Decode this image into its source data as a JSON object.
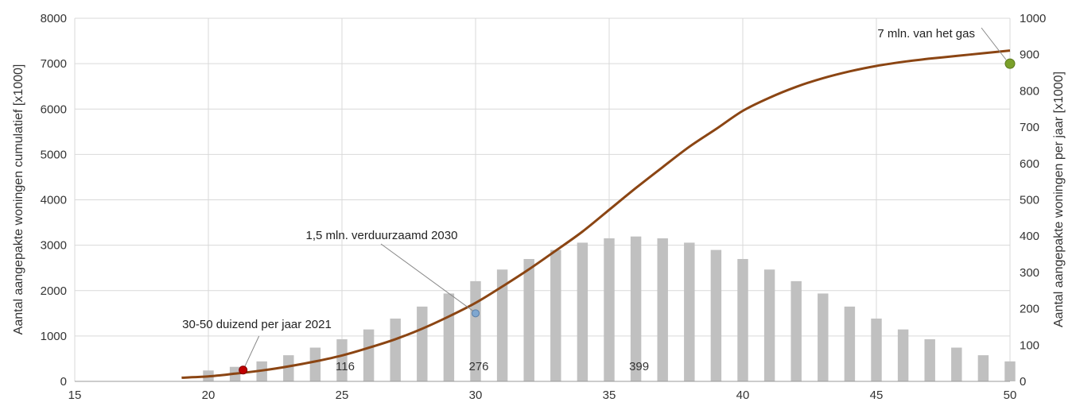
{
  "chart_data": {
    "type": "bar+line",
    "x": [
      20,
      21,
      22,
      23,
      24,
      25,
      26,
      27,
      28,
      29,
      30,
      31,
      32,
      33,
      34,
      35,
      36,
      37,
      38,
      39,
      40,
      41,
      42,
      43,
      44,
      45,
      46,
      47,
      48,
      49,
      50
    ],
    "xlim": [
      15,
      50
    ],
    "x_ticks": [
      15,
      20,
      25,
      30,
      35,
      40,
      45,
      50
    ],
    "ylabel_left": "Aantal aangepakte woningen cumulatief [x1000]",
    "ylabel_right": "Aantal aangepakte woningen per jaar [x1000]",
    "ylim_left": [
      0,
      8000
    ],
    "ylim_right": [
      0,
      1000
    ],
    "y_ticks_left": [
      0,
      1000,
      2000,
      3000,
      4000,
      5000,
      6000,
      7000,
      8000
    ],
    "y_ticks_right": [
      0,
      100,
      200,
      300,
      400,
      500,
      600,
      700,
      800,
      900,
      1000
    ],
    "grid": true,
    "colors": {
      "bars": "#c0c0c0",
      "curve": "#8b4513",
      "grid": "#d9d9d9",
      "start_marker": "#c00000",
      "mid_marker": "#7fa7d0",
      "end_marker": "#7aa02a"
    },
    "series": [
      {
        "axis": "right",
        "type": "bar",
        "values": [
          30,
          40,
          55,
          72,
          93,
          116,
          143,
          173,
          206,
          242,
          276,
          308,
          337,
          362,
          382,
          394,
          399,
          394,
          382,
          362,
          337,
          308,
          276,
          242,
          206,
          173,
          143,
          116,
          93,
          72,
          55
        ]
      },
      {
        "axis": "left",
        "type": "line",
        "x": [
          19,
          20,
          21,
          22,
          23,
          24,
          25,
          26,
          27,
          28,
          29,
          30,
          31,
          32,
          33,
          34,
          35,
          36,
          37,
          38,
          39,
          40,
          41,
          42,
          43,
          44,
          45,
          46,
          47,
          48,
          49,
          50
        ],
        "values": [
          80,
          110,
          170,
          240,
          330,
          440,
          570,
          740,
          930,
          1160,
          1430,
          1730,
          2090,
          2470,
          2880,
          3300,
          3780,
          4260,
          4720,
          5170,
          5560,
          5960,
          6250,
          6490,
          6680,
          6830,
          6950,
          7040,
          7110,
          7170,
          7230,
          7290
        ]
      }
    ],
    "value_labels": [
      {
        "x": 25,
        "text": "116"
      },
      {
        "x": 30,
        "text": "276"
      },
      {
        "x": 36,
        "text": "399"
      }
    ],
    "annotations": [
      {
        "text": "30-50 duizend  per jaar 2021",
        "x": 21.3,
        "y": 250,
        "marker": "start_marker"
      },
      {
        "text": "1,5 mln. verduurzaamd 2030",
        "x": 30,
        "y": 1500,
        "marker": "mid_marker"
      },
      {
        "text": "7 mln. van het gas",
        "x": 50,
        "y": 7000,
        "marker": "end_marker"
      }
    ]
  }
}
